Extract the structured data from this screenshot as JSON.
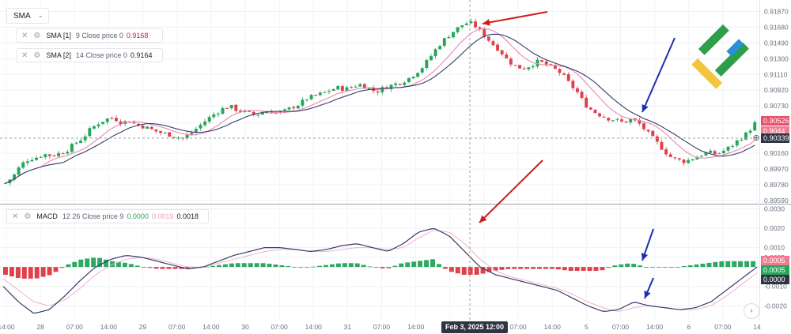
{
  "toolbar": {
    "indicator_select": "SMA"
  },
  "legends": {
    "sma1": {
      "name": "SMA [1]",
      "params": "9 Close price 0",
      "value": "0.9168",
      "value_color": "#c2185b"
    },
    "sma2": {
      "name": "SMA [2]",
      "params": "14 Close price 0",
      "value": "0.9164",
      "value_color": "#222222"
    },
    "macd": {
      "name": "MACD",
      "params": "12 26 Close price 9",
      "v1": "0.0000",
      "v2": "0.0019",
      "v3": "0.0018",
      "v1_color": "#26a65b",
      "v2_color": "#e8a0b8",
      "v3_color": "#222222"
    }
  },
  "crosshair": {
    "date_label": "Feb 3, 2025 12:00"
  },
  "price_tags": [
    {
      "text": "0.90526",
      "bg": "#e8506b"
    },
    {
      "text": "0.9044",
      "bg": "#f07a92"
    },
    {
      "text": "0.90339",
      "bg": "#2f3542"
    }
  ],
  "macd_tags": [
    {
      "text": "0.0005",
      "bg": "#f07a92"
    },
    {
      "text": "0.0005",
      "bg": "#26a65b"
    },
    {
      "text": "0.0000",
      "bg": "#2f3542"
    }
  ],
  "colors": {
    "up": "#26a65b",
    "down": "#e0404a",
    "sma_fast": "#e98ab0",
    "sma_slow": "#353a6b",
    "macd_line": "#353a6b",
    "signal_line": "#f0b3c8",
    "hist_up": "#2ea864",
    "hist_down": "#e0404a",
    "arrow_red": "#cc1d1d",
    "arrow_blue": "#1d2fb0"
  },
  "icons": {
    "close": "close-icon",
    "settings": "gear-icon",
    "crosshair": "crosshair-icon",
    "chevron": "chevron-down-icon",
    "scroll_right": "chevron-right-icon"
  },
  "chart_data": [
    {
      "type": "candlestick",
      "name": "",
      "y_ticks": [
        "0.91870",
        "0.91680",
        "0.91490",
        "0.91300",
        "0.91110",
        "0.90920",
        "0.90730",
        "0.90526",
        "0.90160",
        "0.89970",
        "0.89780",
        "0.89590"
      ],
      "ylim": [
        0.8959,
        0.9195
      ],
      "x_ticks": [
        "14:00",
        "28",
        "07:00",
        "14:00",
        "29",
        "07:00",
        "14:00",
        "30",
        "07:00",
        "14:00",
        "31",
        "07:00",
        "14:00",
        "Feb",
        "4",
        "07:00",
        "14:00",
        "5",
        "07:00",
        "14:00",
        "6",
        "07:00",
        "14"
      ],
      "close_path": [
        0.898,
        0.8988,
        0.9002,
        0.9009,
        0.9011,
        0.9015,
        0.9013,
        0.9016,
        0.902,
        0.9028,
        0.9034,
        0.9045,
        0.9052,
        0.9057,
        0.9059,
        0.9053,
        0.9055,
        0.905,
        0.9048,
        0.9044,
        0.9041,
        0.9039,
        0.9036,
        0.9034,
        0.904,
        0.9048,
        0.9056,
        0.9063,
        0.9069,
        0.9073,
        0.9068,
        0.9066,
        0.9062,
        0.9064,
        0.9067,
        0.9065,
        0.9066,
        0.9071,
        0.9075,
        0.9082,
        0.9085,
        0.9088,
        0.9092,
        0.9095,
        0.9093,
        0.9097,
        0.9099,
        0.9094,
        0.909,
        0.9095,
        0.9098,
        0.9101,
        0.9105,
        0.9112,
        0.912,
        0.9132,
        0.9145,
        0.9155,
        0.9163,
        0.917,
        0.9174,
        0.9168,
        0.9158,
        0.9148,
        0.914,
        0.9128,
        0.9121,
        0.9118,
        0.9122,
        0.9127,
        0.9123,
        0.9118,
        0.9112,
        0.91,
        0.909,
        0.9075,
        0.9067,
        0.9062,
        0.9058,
        0.9056,
        0.9053,
        0.9057,
        0.9052,
        0.9042,
        0.9032,
        0.9022,
        0.9012,
        0.9008,
        0.9006,
        0.901,
        0.9014,
        0.9017,
        0.9015,
        0.9019,
        0.9025,
        0.9033,
        0.904,
        0.9052
      ]
    },
    {
      "type": "macd",
      "name": "",
      "y_ticks": [
        "0.0030",
        "0.0020",
        "0.0010",
        "0.0005",
        "0.0000",
        "-0.0010",
        "-0.0020"
      ],
      "ylim": [
        -0.0026,
        0.0031
      ],
      "macd_line": [
        -0.001,
        -0.0018,
        -0.0024,
        -0.0022,
        -0.0015,
        -0.0007,
        0.0,
        0.0004,
        0.0006,
        0.0005,
        0.0003,
        0.0001,
        -0.0001,
        0.0,
        0.0003,
        0.0006,
        0.0008,
        0.001,
        0.001,
        0.0009,
        0.0008,
        0.0009,
        0.0011,
        0.0012,
        0.001,
        0.0008,
        0.0012,
        0.0018,
        0.002,
        0.0016,
        0.0008,
        0.0,
        -0.0004,
        -0.0006,
        -0.0008,
        -0.001,
        -0.0012,
        -0.0016,
        -0.002,
        -0.0023,
        -0.0022,
        -0.0018,
        -0.002,
        -0.0021,
        -0.0022,
        -0.0021,
        -0.0018,
        -0.0012,
        -0.0006,
        0.0
      ],
      "signal_line": [
        -0.0006,
        -0.0012,
        -0.0018,
        -0.002,
        -0.0017,
        -0.0011,
        -0.0004,
        0.0001,
        0.0004,
        0.0005,
        0.0004,
        0.0002,
        0.0,
        0.0,
        0.0002,
        0.0004,
        0.0006,
        0.0008,
        0.0009,
        0.0009,
        0.0008,
        0.0008,
        0.0009,
        0.001,
        0.001,
        0.0009,
        0.001,
        0.0015,
        0.0019,
        0.0018,
        0.0012,
        0.0004,
        -0.0002,
        -0.0005,
        -0.0007,
        -0.0009,
        -0.0011,
        -0.0014,
        -0.0018,
        -0.0021,
        -0.0023,
        -0.0021,
        -0.002,
        -0.0021,
        -0.0022,
        -0.0022,
        -0.002,
        -0.0015,
        -0.0009,
        -0.0003
      ],
      "histogram": [
        -0.0004,
        -0.0006,
        -0.0006,
        -0.0004,
        0.0001,
        0.0004,
        0.0005,
        0.0003,
        0.0002,
        0.0,
        -0.0001,
        -0.0001,
        -0.0001,
        0.0,
        0.0001,
        0.0002,
        0.0002,
        0.0002,
        0.0001,
        0.0,
        0.0,
        0.0001,
        0.0002,
        0.0002,
        0.0,
        -0.0001,
        0.0002,
        0.0003,
        0.0004,
        -0.0002,
        -0.0004,
        -0.0004,
        -0.0002,
        -0.0001,
        -0.0001,
        -0.0001,
        -0.0001,
        -0.0002,
        -0.0002,
        -0.0002,
        0.0001,
        0.0002,
        0.0,
        0.0,
        0.0,
        0.0001,
        0.0002,
        0.0003,
        0.0003,
        0.0003
      ]
    }
  ]
}
